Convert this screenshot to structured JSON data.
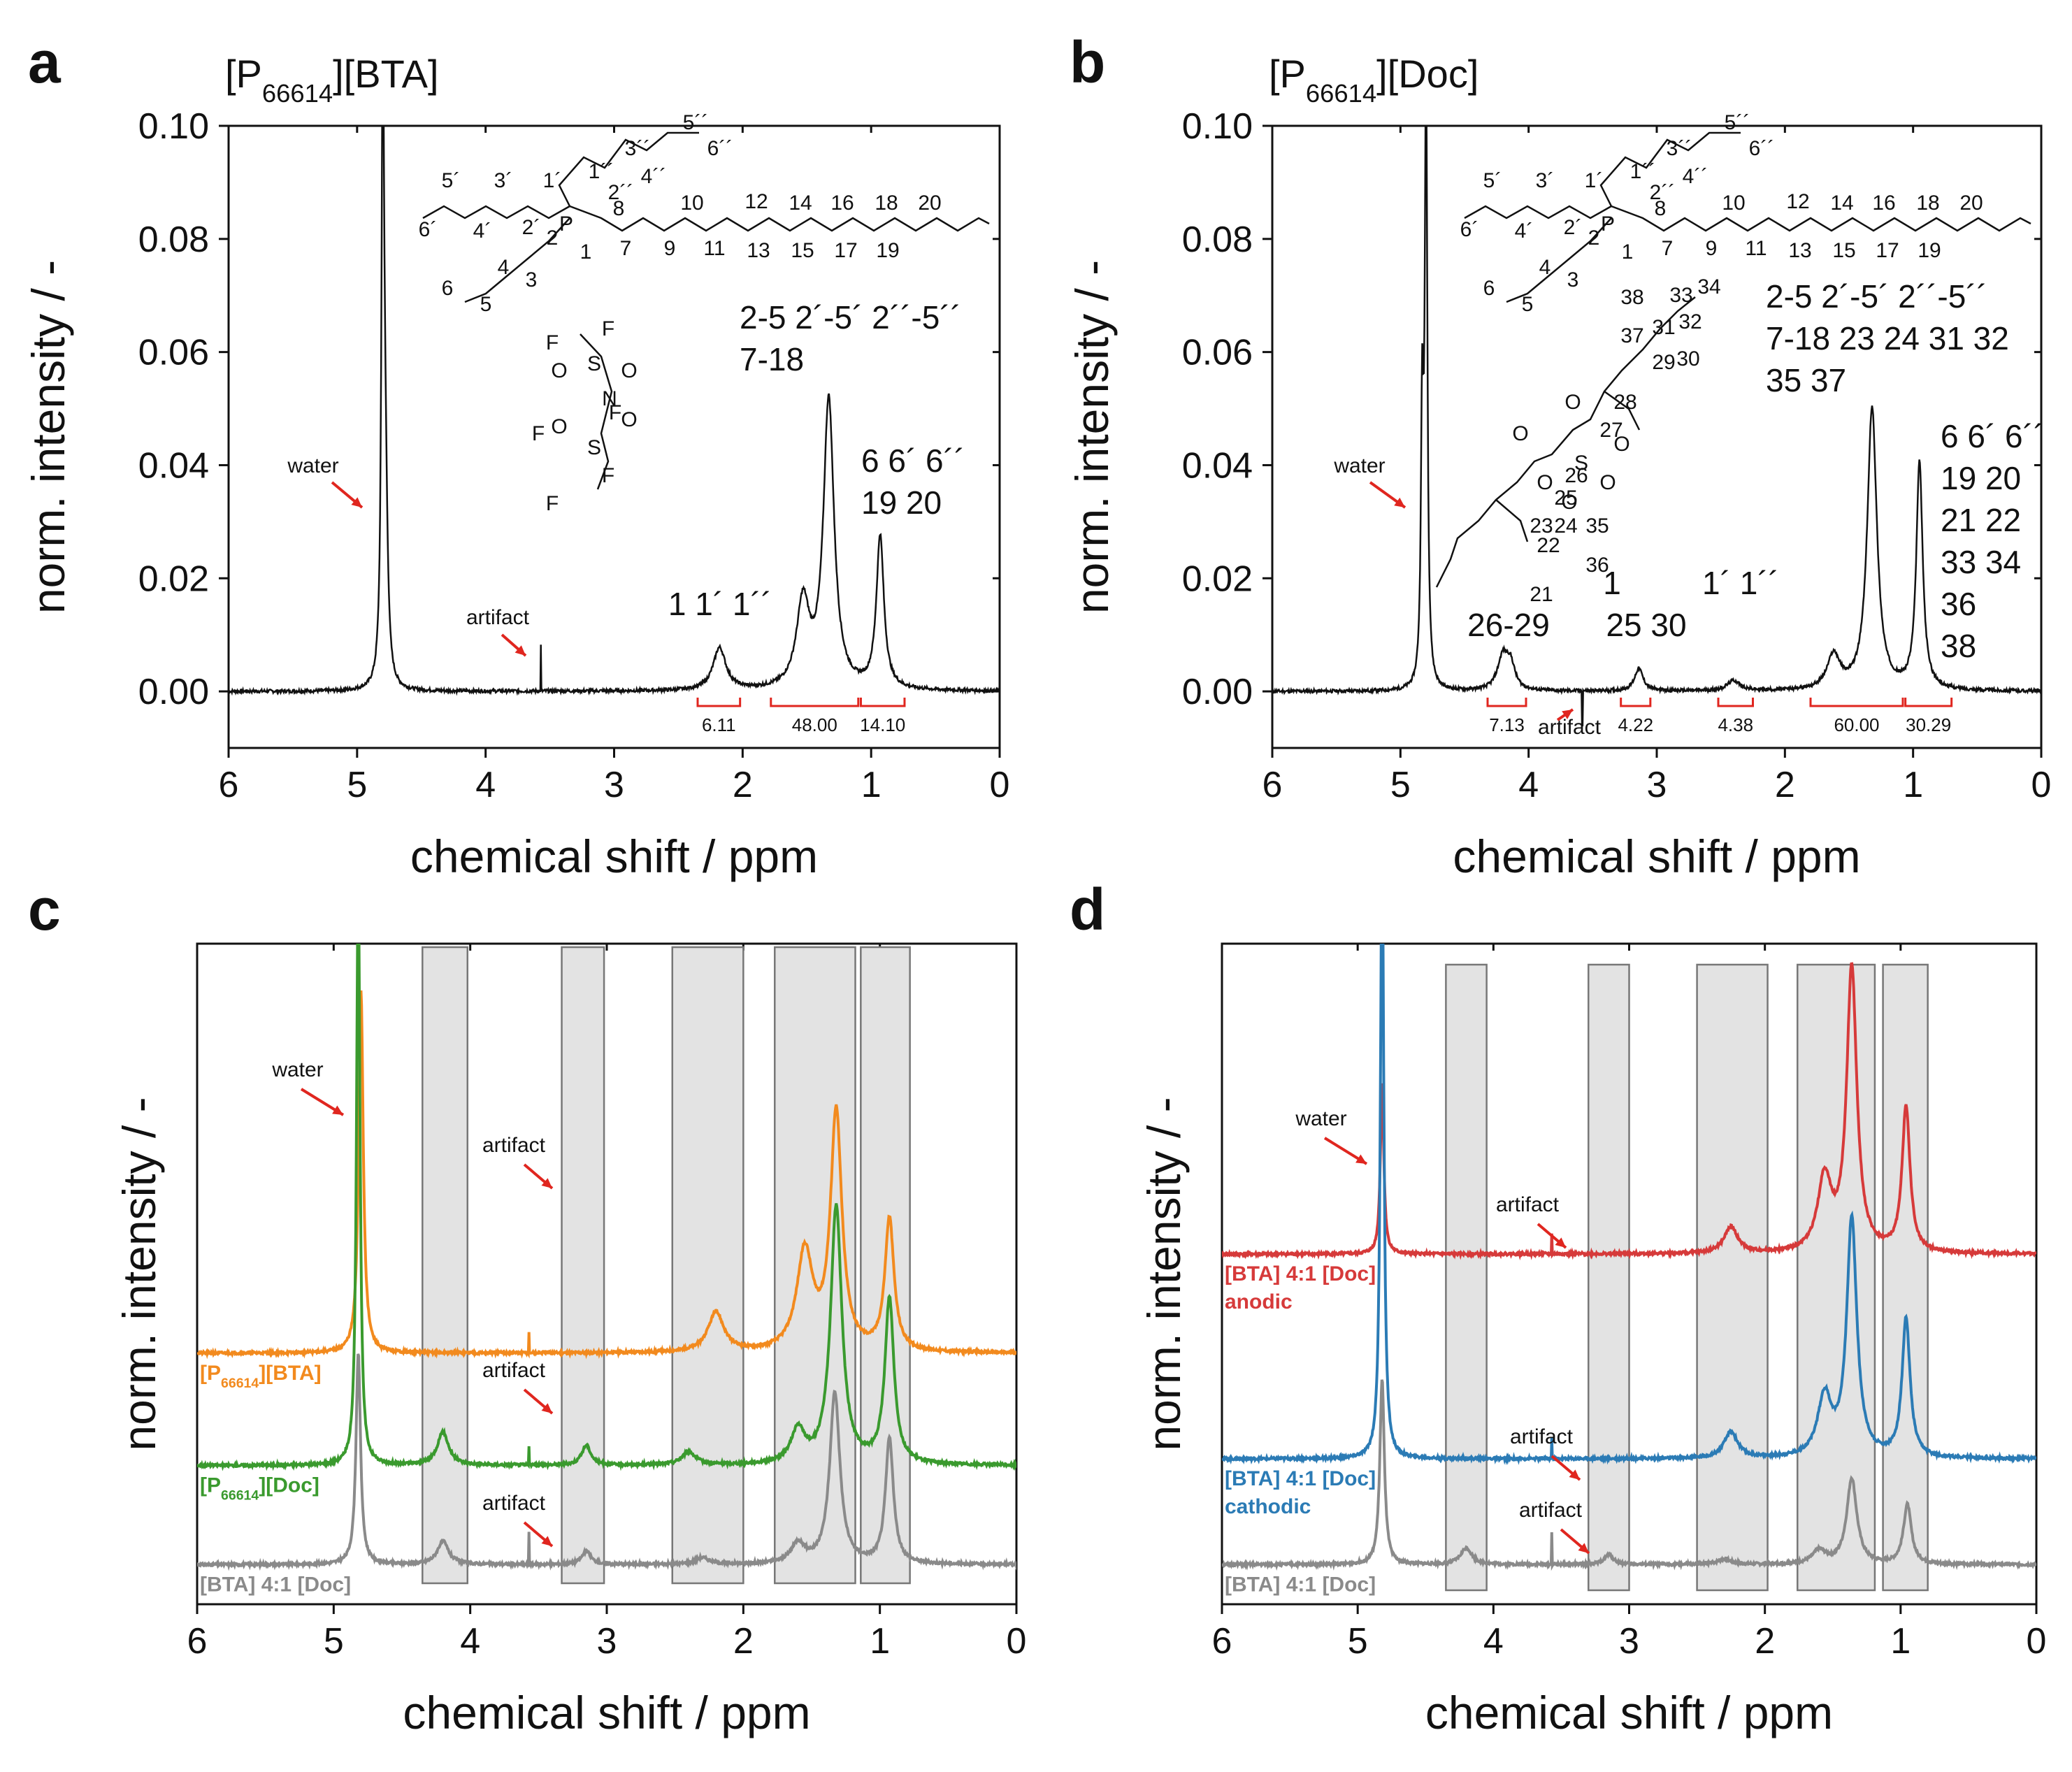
{
  "chart_data": [
    {
      "panel": "a",
      "type": "line",
      "title": "[P66614][BTA]",
      "title_base": "[P",
      "title_sub": "66614",
      "title_rest": "][BTA]",
      "xlabel": "chemical shift / ppm",
      "ylabel": "norm. intensity / -",
      "xlim": [
        6,
        0
      ],
      "ylim": [
        -0.01,
        0.1
      ],
      "xticks": [
        "6",
        "5",
        "4",
        "3",
        "2",
        "1",
        "0"
      ],
      "yticks": [
        "0.00",
        "0.02",
        "0.04",
        "0.06",
        "0.08",
        "0.10"
      ],
      "peaks": [
        {
          "x": 4.8,
          "y": 0.105,
          "w": 0.012
        },
        {
          "x": 4.78,
          "y": 0.032,
          "w": 0.02
        },
        {
          "x": 2.18,
          "y": 0.0075,
          "w": 0.06
        },
        {
          "x": 1.53,
          "y": 0.015,
          "w": 0.06
        },
        {
          "x": 1.33,
          "y": 0.051,
          "w": 0.05
        },
        {
          "x": 0.93,
          "y": 0.027,
          "w": 0.035
        }
      ],
      "integrals": [
        {
          "from": 2.35,
          "to": 2.02,
          "label": "6.11"
        },
        {
          "from": 1.78,
          "to": 1.1,
          "label": "48.00"
        },
        {
          "from": 1.08,
          "to": 0.74,
          "label": "14.10"
        }
      ],
      "labels": {
        "water": "water",
        "artifact": "artifact",
        "peak1": "1  1´ 1´´",
        "peak2a": "2-5 2´-5´ 2´´-5´´",
        "peak2b": "7-18",
        "peak3a": "6  6´ 6´´",
        "peak3b": "19 20"
      }
    },
    {
      "panel": "b",
      "type": "line",
      "title": "[P66614][Doc]",
      "title_base": "[P",
      "title_sub": "66614",
      "title_rest": "][Doc]",
      "xlabel": "chemical shift / ppm",
      "ylabel": "norm. intensity / -",
      "xlim": [
        6,
        0
      ],
      "ylim": [
        -0.01,
        0.1
      ],
      "xticks": [
        "6",
        "5",
        "4",
        "3",
        "2",
        "1",
        "0"
      ],
      "yticks": [
        "0.00",
        "0.02",
        "0.04",
        "0.06",
        "0.08",
        "0.10"
      ],
      "peaks": [
        {
          "x": 4.8,
          "y": 0.105,
          "w": 0.012
        },
        {
          "x": 4.83,
          "y": 0.047,
          "w": 0.012
        },
        {
          "x": 4.2,
          "y": 0.006,
          "w": 0.05
        },
        {
          "x": 4.14,
          "y": 0.004,
          "w": 0.04
        },
        {
          "x": 3.14,
          "y": 0.004,
          "w": 0.04
        },
        {
          "x": 2.4,
          "y": 0.0018,
          "w": 0.06
        },
        {
          "x": 1.62,
          "y": 0.006,
          "w": 0.06
        },
        {
          "x": 1.32,
          "y": 0.05,
          "w": 0.045
        },
        {
          "x": 0.95,
          "y": 0.04,
          "w": 0.03
        }
      ],
      "integrals": [
        {
          "from": 4.32,
          "to": 4.02,
          "label": "7.13"
        },
        {
          "from": 3.28,
          "to": 3.05,
          "label": "4.22"
        },
        {
          "from": 2.52,
          "to": 2.25,
          "label": "4.38"
        },
        {
          "from": 1.8,
          "to": 1.08,
          "label": "60.00"
        },
        {
          "from": 1.06,
          "to": 0.7,
          "label": "30.29"
        }
      ],
      "labels": {
        "water": "water",
        "artifact": "artifact",
        "g1": "26-29",
        "g2a": "1",
        "g2b": "25 30",
        "g3": "1´ 1´´",
        "g4a": "2-5 2´-5´ 2´´-5´´",
        "g4b": "7-18 23 24 31 32",
        "g4c": "35 37",
        "g5": [
          "6  6´ 6´´",
          "19 20",
          "21 22",
          "33 34",
          "36",
          "38"
        ]
      }
    },
    {
      "panel": "c",
      "type": "line",
      "xlabel": "chemical shift / ppm",
      "ylabel": "norm. intensity / -",
      "xlim": [
        6,
        0
      ],
      "xticks": [
        "6",
        "5",
        "4",
        "3",
        "2",
        "1",
        "0"
      ],
      "shaded_regions": [
        [
          4.35,
          4.02
        ],
        [
          3.33,
          3.02
        ],
        [
          2.52,
          2.0
        ],
        [
          1.77,
          1.18
        ],
        [
          1.14,
          0.78
        ]
      ],
      "series": [
        {
          "name": "[P66614][BTA]",
          "name_base": "[P",
          "name_sub": "66614",
          "name_rest": "][BTA]",
          "color": "#f28a1e",
          "baseline": 0.62,
          "peaks": [
            {
              "x": 4.8,
              "y": 0.55,
              "w": 0.02
            },
            {
              "x": 2.2,
              "y": 0.06,
              "w": 0.07
            },
            {
              "x": 1.55,
              "y": 0.15,
              "w": 0.07
            },
            {
              "x": 1.32,
              "y": 0.36,
              "w": 0.05
            },
            {
              "x": 0.93,
              "y": 0.2,
              "w": 0.04
            }
          ]
        },
        {
          "name": "[P66614][Doc]",
          "name_base": "[P",
          "name_sub": "66614",
          "name_rest": "][Doc]",
          "color": "#3a9a2e",
          "baseline": 0.79,
          "peaks": [
            {
              "x": 4.82,
              "y": 0.9,
              "w": 0.015
            },
            {
              "x": 4.2,
              "y": 0.05,
              "w": 0.05
            },
            {
              "x": 3.15,
              "y": 0.03,
              "w": 0.04
            },
            {
              "x": 2.4,
              "y": 0.02,
              "w": 0.06
            },
            {
              "x": 1.6,
              "y": 0.05,
              "w": 0.06
            },
            {
              "x": 1.32,
              "y": 0.39,
              "w": 0.05
            },
            {
              "x": 0.93,
              "y": 0.25,
              "w": 0.04
            }
          ]
        },
        {
          "name": "[BTA] 4:1 [Doc]",
          "color": "#8a8a8a",
          "baseline": 0.94,
          "peaks": [
            {
              "x": 4.82,
              "y": 0.32,
              "w": 0.02
            },
            {
              "x": 4.2,
              "y": 0.035,
              "w": 0.05
            },
            {
              "x": 3.15,
              "y": 0.02,
              "w": 0.04
            },
            {
              "x": 2.3,
              "y": 0.01,
              "w": 0.06
            },
            {
              "x": 1.6,
              "y": 0.03,
              "w": 0.06
            },
            {
              "x": 1.33,
              "y": 0.26,
              "w": 0.045
            },
            {
              "x": 0.93,
              "y": 0.19,
              "w": 0.035
            }
          ]
        }
      ],
      "labels": {
        "water": "water",
        "artifact": "artifact"
      }
    },
    {
      "panel": "d",
      "type": "line",
      "xlabel": "chemical shift / ppm",
      "ylabel": "norm. intensity / -",
      "xlim": [
        6,
        0
      ],
      "xticks": [
        "6",
        "5",
        "4",
        "3",
        "2",
        "1",
        "0"
      ],
      "shaded_regions": [
        [
          4.35,
          4.05
        ],
        [
          3.3,
          3.0
        ],
        [
          2.5,
          1.98
        ],
        [
          1.76,
          1.19
        ],
        [
          1.13,
          0.8
        ]
      ],
      "series": [
        {
          "name": "[BTA] 4:1 [Doc]",
          "name2": "anodic",
          "color": "#d63a3a",
          "baseline": 0.47,
          "peaks": [
            {
              "x": 4.82,
              "y": 0.26,
              "w": 0.015
            },
            {
              "x": 2.25,
              "y": 0.04,
              "w": 0.06
            },
            {
              "x": 1.56,
              "y": 0.11,
              "w": 0.06
            },
            {
              "x": 1.36,
              "y": 0.43,
              "w": 0.045
            },
            {
              "x": 0.96,
              "y": 0.22,
              "w": 0.035
            }
          ]
        },
        {
          "name": "[BTA] 4:1 [Doc]",
          "name2": "cathodic",
          "color": "#2b7bb5",
          "baseline": 0.78,
          "peaks": [
            {
              "x": 4.82,
              "y": 0.95,
              "w": 0.015
            },
            {
              "x": 2.25,
              "y": 0.04,
              "w": 0.06
            },
            {
              "x": 1.56,
              "y": 0.09,
              "w": 0.06
            },
            {
              "x": 1.36,
              "y": 0.36,
              "w": 0.045
            },
            {
              "x": 0.96,
              "y": 0.21,
              "w": 0.035
            }
          ]
        },
        {
          "name": "[BTA] 4:1 [Doc]",
          "color": "#8a8a8a",
          "baseline": 0.94,
          "peaks": [
            {
              "x": 4.82,
              "y": 0.28,
              "w": 0.02
            },
            {
              "x": 4.2,
              "y": 0.025,
              "w": 0.05
            },
            {
              "x": 3.15,
              "y": 0.015,
              "w": 0.04
            },
            {
              "x": 2.3,
              "y": 0.008,
              "w": 0.06
            },
            {
              "x": 1.6,
              "y": 0.02,
              "w": 0.06
            },
            {
              "x": 1.36,
              "y": 0.13,
              "w": 0.045
            },
            {
              "x": 0.95,
              "y": 0.09,
              "w": 0.035
            }
          ]
        }
      ],
      "labels": {
        "water": "water",
        "artifact": "artifact"
      }
    }
  ],
  "panel_letters": [
    "a",
    "b",
    "c",
    "d"
  ],
  "structure_labels_a": [
    "5´",
    "3´",
    "1´",
    "1´´",
    "3´´",
    "5´´",
    "6´´",
    "4´´",
    "2´´",
    "6´",
    "4´",
    "2´",
    "2",
    "8",
    "10",
    "12",
    "14",
    "16",
    "18",
    "20",
    "1",
    "7",
    "9",
    "11",
    "13",
    "15",
    "17",
    "19",
    "4",
    "3",
    "6",
    "5",
    "P",
    "F",
    "F",
    "F",
    "F",
    "F",
    "F",
    "O",
    "O",
    "O",
    "O",
    "N",
    "S",
    "S"
  ],
  "structure_labels_b": [
    "5´",
    "3´",
    "1´",
    "1´´",
    "3´´",
    "5´´",
    "6´´",
    "4´´",
    "2´´",
    "6´",
    "4´",
    "2´",
    "2",
    "8",
    "10",
    "12",
    "14",
    "16",
    "18",
    "20",
    "1",
    "7",
    "9",
    "11",
    "13",
    "15",
    "17",
    "19",
    "4",
    "3",
    "6",
    "5",
    "P",
    "38",
    "33",
    "34",
    "37",
    "31",
    "32",
    "29",
    "30",
    "28",
    "27",
    "26",
    "25",
    "23",
    "24",
    "35",
    "22",
    "36",
    "21",
    "O",
    "O",
    "O",
    "O",
    "O",
    "O",
    "S"
  ]
}
